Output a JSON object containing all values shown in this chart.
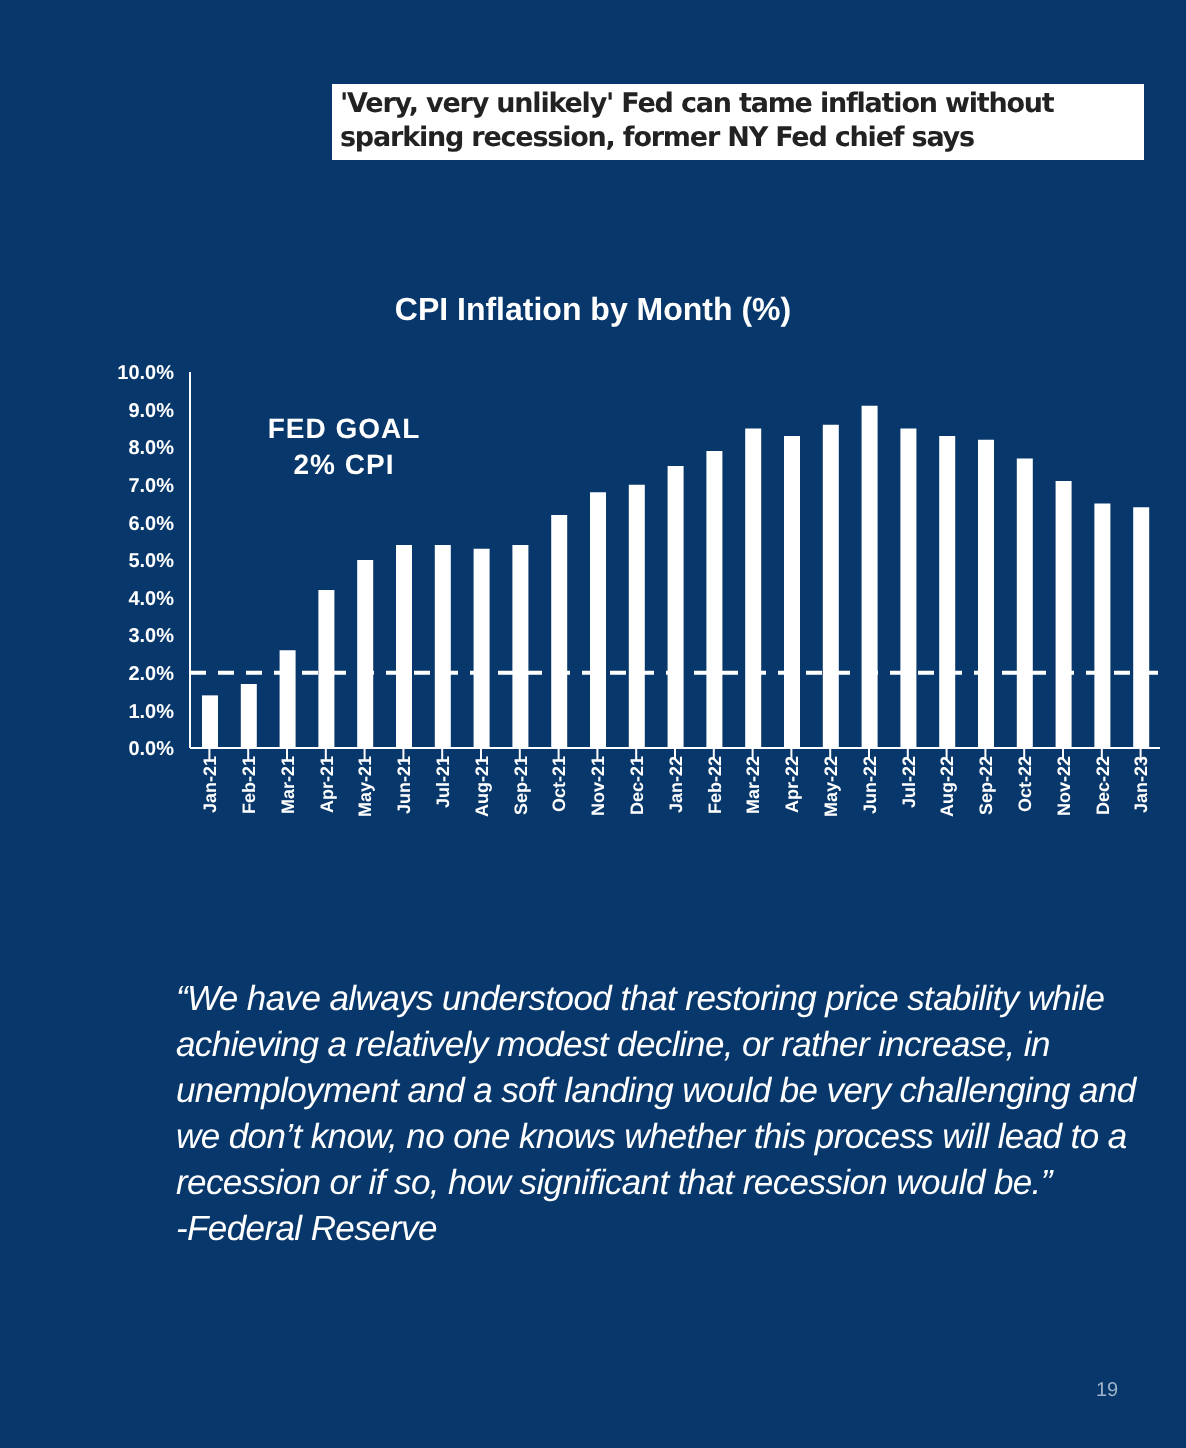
{
  "chart_data": {
    "type": "bar",
    "title": "CPI Inflation by Month (%)",
    "categories": [
      "Jan-21",
      "Feb-21",
      "Mar-21",
      "Apr-21",
      "May-21",
      "Jun-21",
      "Jul-21",
      "Aug-21",
      "Sep-21",
      "Oct-21",
      "Nov-21",
      "Dec-21",
      "Jan-22",
      "Feb-22",
      "Mar-22",
      "Apr-22",
      "May-22",
      "Jun-22",
      "Jul-22",
      "Aug-22",
      "Sep-22",
      "Oct-22",
      "Nov-22",
      "Dec-22",
      "Jan-23"
    ],
    "values": [
      1.4,
      1.7,
      2.6,
      4.2,
      5.0,
      5.4,
      5.4,
      5.3,
      5.4,
      6.2,
      6.8,
      7.0,
      7.5,
      7.9,
      8.5,
      8.3,
      8.6,
      9.1,
      8.5,
      8.3,
      8.2,
      7.7,
      7.1,
      6.5,
      6.4
    ],
    "color": "#ffffff",
    "ylim": [
      0,
      10
    ],
    "yticks": [
      {
        "value": 0,
        "label": "0.0%"
      },
      {
        "value": 1,
        "label": "1.0%"
      },
      {
        "value": 2,
        "label": "2.0%"
      },
      {
        "value": 3,
        "label": "3.0%"
      },
      {
        "value": 4,
        "label": "4.0%"
      },
      {
        "value": 5,
        "label": "5.0%"
      },
      {
        "value": 6,
        "label": "6.0%"
      },
      {
        "value": 7,
        "label": "7.0%"
      },
      {
        "value": 8,
        "label": "8.0%"
      },
      {
        "value": 9,
        "label": "9.0%"
      },
      {
        "value": 10,
        "label": "10.0%"
      }
    ],
    "ref_lines": [
      {
        "axis": "y",
        "value": 2,
        "label": "FED GOAL 2% CPI",
        "color": "#ffffff",
        "line_style": "dashed"
      }
    ],
    "grid": false,
    "annotations": [
      "'Very, very unlikely' Fed can tame inflation without sparking recession, former NY Fed chief says",
      "“We have always understood that restoring price stability while achieving a relatively modest decline, or rather increase, in unemployment and a soft landing would be very challenging and we don’t know, no one knows whether this process will lead to a recession or if so, how significant that recession would be.”",
      "-Federal Reserve",
      "19"
    ]
  }
}
